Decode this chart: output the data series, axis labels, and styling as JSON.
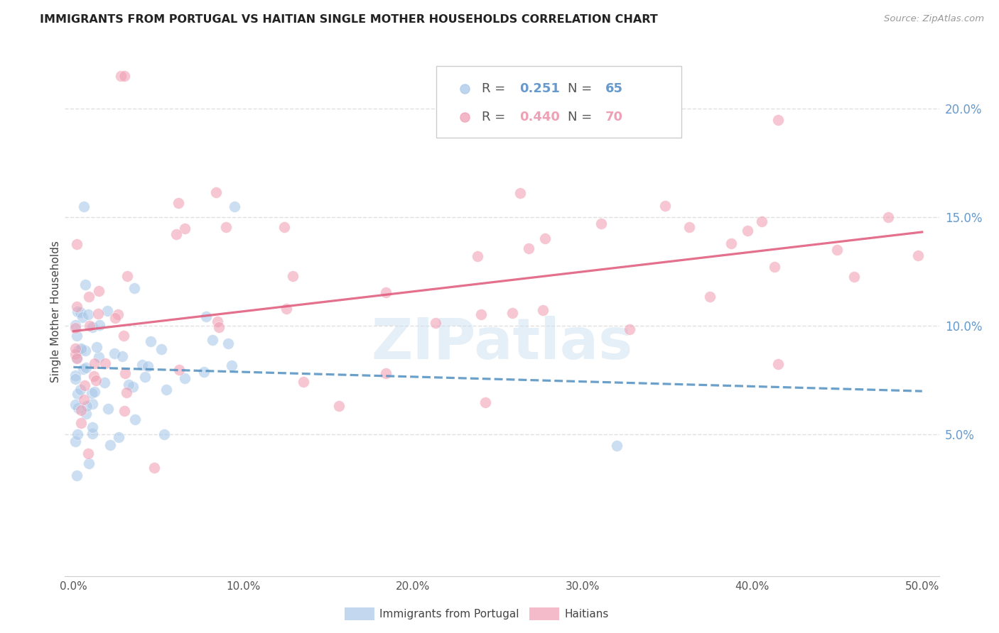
{
  "title": "IMMIGRANTS FROM PORTUGAL VS HAITIAN SINGLE MOTHER HOUSEHOLDS CORRELATION CHART",
  "source": "Source: ZipAtlas.com",
  "ylabel": "Single Mother Households",
  "xlim": [
    0.0,
    0.5
  ],
  "ylim": [
    -0.015,
    0.228
  ],
  "y_ticks": [
    0.05,
    0.1,
    0.15,
    0.2
  ],
  "x_ticks": [
    0.0,
    0.1,
    0.2,
    0.3,
    0.4,
    0.5
  ],
  "blue_color": "#aac8e8",
  "pink_color": "#f0a0b5",
  "blue_line_color": "#5090c0",
  "pink_line_color": "#e06080",
  "axis_color": "#6699cc",
  "grid_color": "#e0e0e0",
  "blue_R": 0.251,
  "blue_N": 65,
  "pink_R": 0.44,
  "pink_N": 70,
  "watermark": "ZIPatlas",
  "legend_label_blue": "Immigrants from Portugal",
  "legend_label_pink": "Haitians"
}
